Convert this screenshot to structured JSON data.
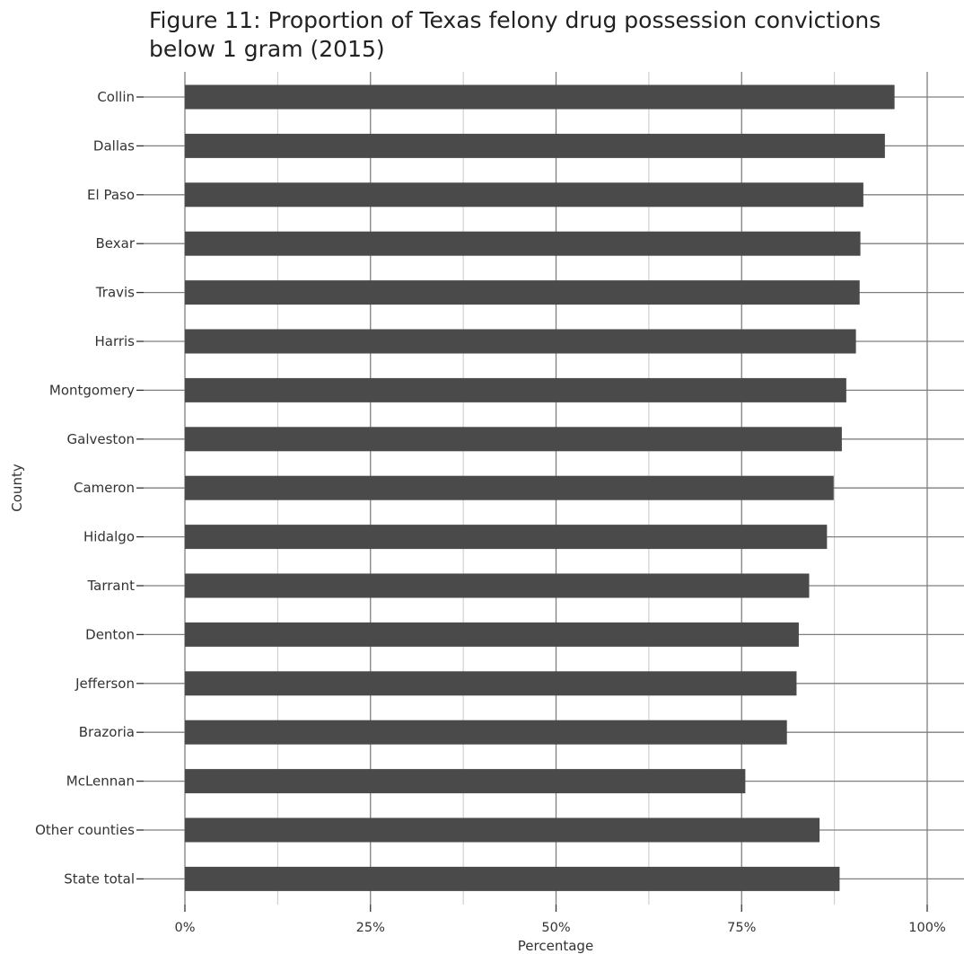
{
  "chart_data": {
    "type": "bar",
    "orientation": "horizontal",
    "title": [
      "Figure 11: Proportion of Texas felony drug possession convictions",
      "below 1 gram (2015)"
    ],
    "xlabel": "Percentage",
    "ylabel": "County",
    "categories": [
      "Collin",
      "Dallas",
      "El Paso",
      "Bexar",
      "Travis",
      "Harris",
      "Montgomery",
      "Galveston",
      "Cameron",
      "Hidalgo",
      "Tarrant",
      "Denton",
      "Jefferson",
      "Brazoria",
      "McLennan",
      "Other counties",
      "State total"
    ],
    "values": [
      95.6,
      94.3,
      91.4,
      91.0,
      90.9,
      90.4,
      89.1,
      88.5,
      87.4,
      86.5,
      84.1,
      82.7,
      82.4,
      81.1,
      75.5,
      85.5,
      88.2
    ],
    "xlim": [
      0,
      100
    ],
    "x_ticks": [
      0,
      25,
      50,
      75,
      100
    ],
    "x_tick_labels": [
      "0%",
      "25%",
      "50%",
      "75%",
      "100%"
    ],
    "grid": true,
    "bar_color": "#4a4a4a",
    "grid_major_color": "#7f7f7f",
    "grid_minor_color": "#c8c8c8"
  }
}
